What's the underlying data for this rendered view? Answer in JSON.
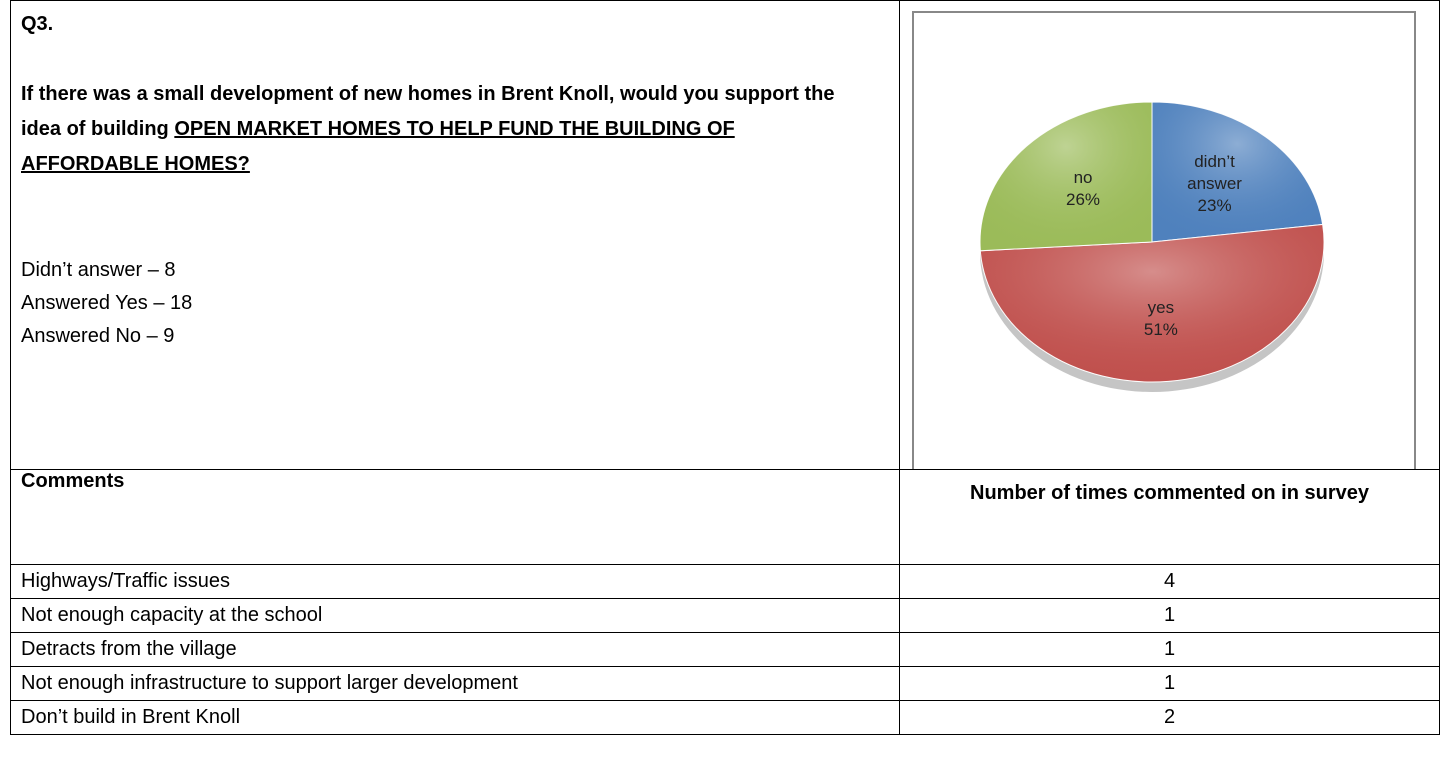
{
  "question": {
    "number": "Q3.",
    "text": "If there was a small development of new homes in Brent Knoll, would you support the idea of building ",
    "emphasis": "OPEN MARKET HOMES TO HELP FUND THE BUILDING OF AFFORDABLE HOMES?"
  },
  "answers": [
    "Didn’t answer – 8",
    "Answered Yes – 18",
    "Answered No – 9"
  ],
  "chart_data": {
    "type": "pie",
    "categories": [
      "didn’t answer",
      "yes",
      "no"
    ],
    "values": [
      23,
      51,
      26
    ],
    "value_labels": [
      "23%",
      "51%",
      "26%"
    ],
    "colors": [
      "#4f81bd",
      "#c0504d",
      "#9bbb59"
    ]
  },
  "table": {
    "headers": [
      "Comments",
      "Number of times commented on in survey"
    ],
    "rows": [
      [
        "Highways/Traffic issues",
        4
      ],
      [
        "Not enough capacity at the school",
        1
      ],
      [
        "Detracts from the village",
        1
      ],
      [
        "Not enough infrastructure to support larger development",
        1
      ],
      [
        "Don’t build in Brent Knoll",
        2
      ]
    ]
  }
}
